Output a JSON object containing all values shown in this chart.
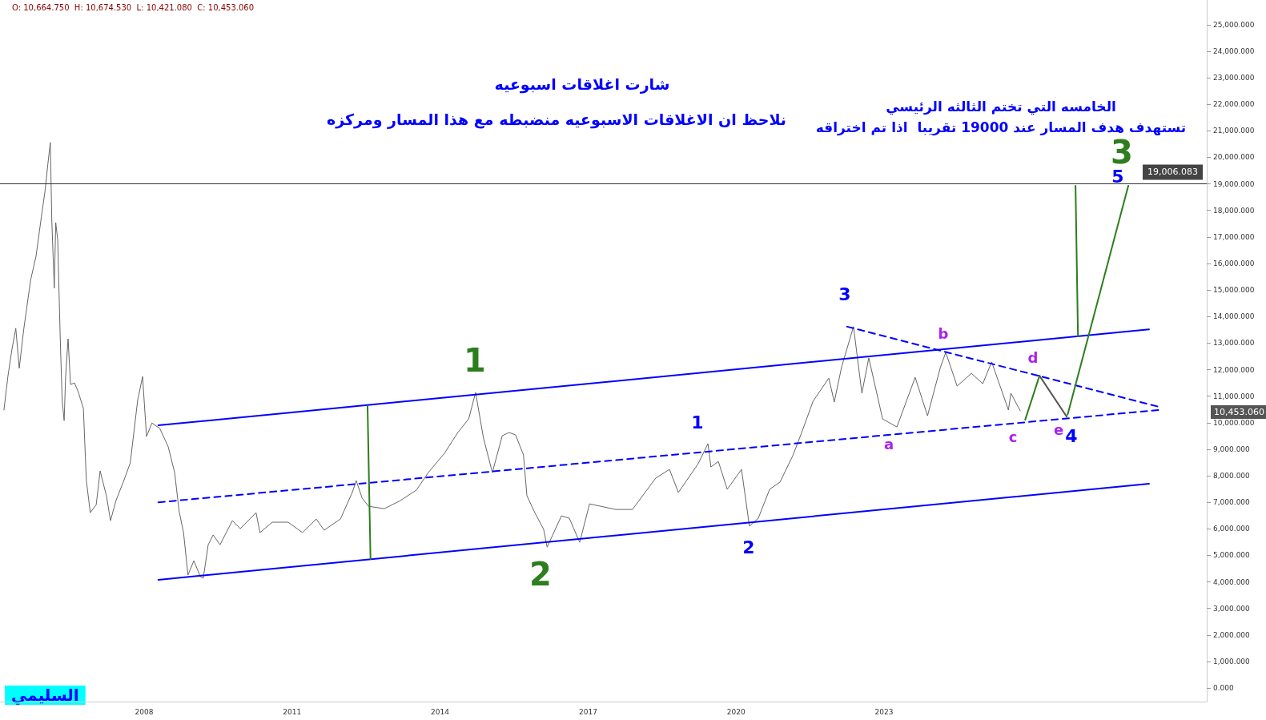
{
  "chart_data": {
    "type": "line",
    "title": "شارت اغلاقات اسبوعيه",
    "subtitle": "نلاحظ ان الاغلاقات الاسبوعيه منضبطه مع هذا المسار ومركزه",
    "xlim": [
      2005.08,
      2029.54
    ],
    "xticks": [
      2008,
      2011,
      2014,
      2017,
      2020,
      2023
    ],
    "ylim": [
      -510,
      25930
    ],
    "yticks": [
      {
        "value": 0,
        "label": "0.000"
      },
      {
        "value": 1000,
        "label": "1,000.000"
      },
      {
        "value": 2000,
        "label": "2,000.000"
      },
      {
        "value": 3000,
        "label": "3,000.000"
      },
      {
        "value": 4000,
        "label": "4,000.000"
      },
      {
        "value": 5000,
        "label": "5,000.000"
      },
      {
        "value": 6000,
        "label": "6,000.000"
      },
      {
        "value": 7000,
        "label": "7,000.000"
      },
      {
        "value": 8000,
        "label": "8,000.000"
      },
      {
        "value": 9000,
        "label": "9,000.000"
      },
      {
        "value": 10000,
        "label": "10,000.000"
      },
      {
        "value": 11000,
        "label": "11,000.000"
      },
      {
        "value": 12000,
        "label": "12,000.000"
      },
      {
        "value": 13000,
        "label": "13,000.000"
      },
      {
        "value": 14000,
        "label": "14,000.000"
      },
      {
        "value": 15000,
        "label": "15,000.000"
      },
      {
        "value": 16000,
        "label": "16,000.000"
      },
      {
        "value": 17000,
        "label": "17,000.000"
      },
      {
        "value": 18000,
        "label": "18,000.000"
      },
      {
        "value": 19000,
        "label": "19,000.000"
      },
      {
        "value": 20000,
        "label": "20,000.000"
      },
      {
        "value": 21000,
        "label": "21,000.000"
      },
      {
        "value": 22000,
        "label": "22,000.000"
      },
      {
        "value": 23000,
        "label": "23,000.000"
      },
      {
        "value": 24000,
        "label": "24,000.000"
      },
      {
        "value": 25000,
        "label": "25,000.000"
      }
    ],
    "grid": false,
    "marker": "none",
    "ref_lines": [
      {
        "axis": "y",
        "value": 19006.083,
        "label": "19,006.083",
        "color": "#333333"
      }
    ],
    "annotations": [
      "O: 10,664.750  H: 10,674.530  L: 10,421.080  C: 10,453.060",
      "الخامسه التي تختم الثالثه الرئيسي",
      "تستهدف هدف المسار عند 19000 تقريبا  اذا تم اختراقه",
      "السليمي",
      "1",
      "2",
      "1",
      "2",
      "3",
      "a",
      "b",
      "c",
      "d",
      "e",
      "4",
      "5",
      "3",
      "10,453.060"
    ],
    "series": [
      {
        "color": "#666666",
        "line_style": "solid",
        "x": [
          2005.16,
          2005.24,
          2005.32,
          2005.4,
          2005.47,
          2005.56,
          2005.7,
          2005.81,
          2005.92,
          2005.99,
          2006.05,
          2006.1,
          2006.13,
          2006.18,
          2006.21,
          2006.25,
          2006.3,
          2006.34,
          2006.38,
          2006.41,
          2006.46,
          2006.51,
          2006.59,
          2006.67,
          2006.77,
          2006.83,
          2006.91,
          2007.03,
          2007.11,
          2007.24,
          2007.32,
          2007.43,
          2007.59,
          2007.72,
          2007.87,
          2007.97,
          2008.05,
          2008.16,
          2008.32,
          2008.49,
          2008.62,
          2008.71,
          2008.8,
          2008.89,
          2009.01,
          2009.14,
          2009.2,
          2009.3,
          2009.4,
          2009.54,
          2009.79,
          2009.95,
          2010.27,
          2010.35,
          2010.6,
          2010.92,
          2011.21,
          2011.49,
          2011.65,
          2011.98,
          2012.22,
          2012.3,
          2012.42,
          2012.55,
          2012.87,
          2013.19,
          2013.52,
          2013.76,
          2014.09,
          2014.36,
          2014.58,
          2014.72,
          2014.88,
          2015.06,
          2015.26,
          2015.4,
          2015.53,
          2015.69,
          2015.76,
          2015.92,
          2016.1,
          2016.17,
          2016.46,
          2016.62,
          2016.83,
          2017.03,
          2017.56,
          2017.9,
          2018.37,
          2018.65,
          2018.83,
          2019.23,
          2019.43,
          2019.49,
          2019.64,
          2019.82,
          2020.11,
          2020.27,
          2020.45,
          2020.68,
          2020.89,
          2021.15,
          2021.33,
          2021.56,
          2021.88,
          2021.99,
          2022.14,
          2022.38,
          2022.55,
          2022.69,
          2022.97,
          2023.26,
          2023.63,
          2023.88,
          2024.14,
          2024.25,
          2024.48,
          2024.77,
          2025,
          2025.18,
          2025.34,
          2025.52,
          2025.57,
          2025.76
        ],
        "values": [
          10480,
          11740,
          12740,
          13560,
          12050,
          13500,
          15370,
          16270,
          17780,
          18690,
          19740,
          20560,
          17630,
          15070,
          17540,
          16880,
          13250,
          10840,
          10080,
          11740,
          13160,
          11440,
          11500,
          11140,
          10540,
          7820,
          6610,
          6910,
          8180,
          7220,
          6310,
          7060,
          7820,
          8480,
          10840,
          11740,
          9480,
          9990,
          9780,
          9090,
          8120,
          6670,
          5860,
          4260,
          4800,
          4200,
          4140,
          5400,
          5770,
          5400,
          6310,
          6010,
          6610,
          5860,
          6250,
          6250,
          5860,
          6370,
          5950,
          6370,
          7370,
          7820,
          7160,
          6850,
          6760,
          7060,
          7460,
          8120,
          8850,
          9630,
          10140,
          11140,
          9420,
          8120,
          9510,
          9630,
          9540,
          8790,
          7250,
          6610,
          5980,
          5310,
          6490,
          6400,
          5490,
          6940,
          6730,
          6730,
          7910,
          8240,
          7370,
          8450,
          9210,
          8330,
          8540,
          7490,
          8240,
          6100,
          6400,
          7490,
          7760,
          8760,
          9630,
          10810,
          11680,
          10780,
          12110,
          13620,
          11110,
          12440,
          10140,
          9840,
          11710,
          10260,
          12080,
          12650,
          11380,
          11860,
          11470,
          12290,
          11440,
          10480,
          11110,
          10450
        ]
      },
      {
        "color": "#0000ff",
        "line_style": "solid",
        "x": [
          2008.29,
          2028.37
        ],
        "values": [
          9900,
          13520
        ]
      },
      {
        "color": "#0000ff",
        "line_style": "solid",
        "x": [
          2008.29,
          2028.37
        ],
        "values": [
          4080,
          7700
        ]
      },
      {
        "color": "#0000ff",
        "line_style": "dashed",
        "x": [
          2008.29,
          2028.57
        ],
        "values": [
          7000,
          10480
        ]
      },
      {
        "color": "#0000ff",
        "line_style": "dashed",
        "x": [
          2022.25,
          2028.57
        ],
        "values": [
          13620,
          10600
        ]
      },
      {
        "color": "#2e7d1e",
        "line_style": "solid",
        "x": [
          2025.86,
          2026.15
        ],
        "values": [
          10110,
          11770
        ]
      },
      {
        "color": "#555555",
        "line_style": "solid",
        "x": [
          2026.15,
          2026.7
        ],
        "values": [
          11770,
          10230
        ]
      },
      {
        "color": "#2e7d1e",
        "line_style": "solid",
        "x": [
          2026.72,
          2027.95
        ],
        "values": [
          10300,
          18930
        ]
      },
      {
        "color": "#2e7d1e",
        "line_style": "solid",
        "x": [
          2012.59,
          2012.53
        ],
        "values": [
          4860,
          10630
        ]
      },
      {
        "color": "#2e7d1e",
        "line_style": "solid",
        "x": [
          2026.93,
          2026.88
        ],
        "values": [
          13250,
          18930
        ]
      }
    ]
  }
}
